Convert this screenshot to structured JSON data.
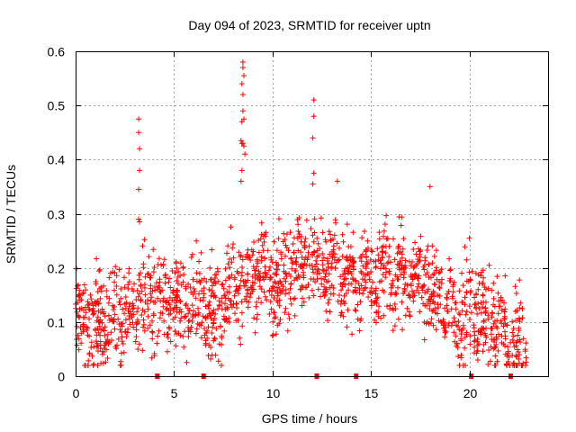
{
  "chart_data": {
    "type": "scatter",
    "title": "Day 094 of 2023, SRMTID for receiver uptn",
    "xlabel": "GPS time / hours",
    "ylabel": "SRMTID / TECUs",
    "xlim": [
      0,
      24
    ],
    "ylim": [
      0,
      0.6
    ],
    "xticks": [
      0,
      5,
      10,
      15,
      20
    ],
    "xtick_labels": [
      "0",
      "5",
      "10",
      "15",
      "20"
    ],
    "yticks": [
      0,
      0.1,
      0.2,
      0.3,
      0.4,
      0.5,
      0.6
    ],
    "ytick_labels": [
      "0",
      "0.1",
      "0.2",
      "0.3",
      "0.4",
      "0.5",
      "0.6"
    ],
    "grid": true,
    "marker": "plus",
    "series_color": "#ff0000",
    "data_range_hours": [
      0,
      22.9
    ],
    "envelope": {
      "description": "approximate central trend of the scattered points (hours, TECU)",
      "x": [
        0,
        1,
        2,
        3,
        4,
        5,
        6,
        7,
        8,
        9,
        10,
        11,
        12,
        13,
        14,
        15,
        16,
        17,
        18,
        19,
        20,
        21,
        22,
        22.9
      ],
      "y": [
        0.11,
        0.1,
        0.11,
        0.12,
        0.14,
        0.13,
        0.14,
        0.11,
        0.15,
        0.2,
        0.17,
        0.19,
        0.22,
        0.2,
        0.17,
        0.19,
        0.2,
        0.18,
        0.18,
        0.13,
        0.11,
        0.11,
        0.07,
        0.05
      ]
    },
    "outliers": [
      {
        "x": 3.2,
        "y": 0.475
      },
      {
        "x": 3.2,
        "y": 0.45
      },
      {
        "x": 3.25,
        "y": 0.42
      },
      {
        "x": 3.25,
        "y": 0.38
      },
      {
        "x": 3.2,
        "y": 0.345
      },
      {
        "x": 3.2,
        "y": 0.29
      },
      {
        "x": 3.25,
        "y": 0.285
      },
      {
        "x": 8.5,
        "y": 0.58
      },
      {
        "x": 8.5,
        "y": 0.57
      },
      {
        "x": 8.55,
        "y": 0.555
      },
      {
        "x": 8.45,
        "y": 0.54
      },
      {
        "x": 8.5,
        "y": 0.52
      },
      {
        "x": 8.5,
        "y": 0.49
      },
      {
        "x": 8.55,
        "y": 0.475
      },
      {
        "x": 8.45,
        "y": 0.47
      },
      {
        "x": 8.4,
        "y": 0.435
      },
      {
        "x": 8.45,
        "y": 0.43
      },
      {
        "x": 8.5,
        "y": 0.43
      },
      {
        "x": 8.55,
        "y": 0.425
      },
      {
        "x": 8.6,
        "y": 0.41
      },
      {
        "x": 8.45,
        "y": 0.38
      },
      {
        "x": 8.4,
        "y": 0.36
      },
      {
        "x": 12.1,
        "y": 0.51
      },
      {
        "x": 12.1,
        "y": 0.48
      },
      {
        "x": 12.05,
        "y": 0.44
      },
      {
        "x": 12.1,
        "y": 0.375
      },
      {
        "x": 12.05,
        "y": 0.355
      },
      {
        "x": 13.3,
        "y": 0.36
      },
      {
        "x": 18.0,
        "y": 0.35
      },
      {
        "x": 20.0,
        "y": 0.255
      }
    ],
    "data_gaps_hours": [
      4.15,
      6.5,
      12.25,
      14.25,
      20.1,
      22.1
    ]
  }
}
